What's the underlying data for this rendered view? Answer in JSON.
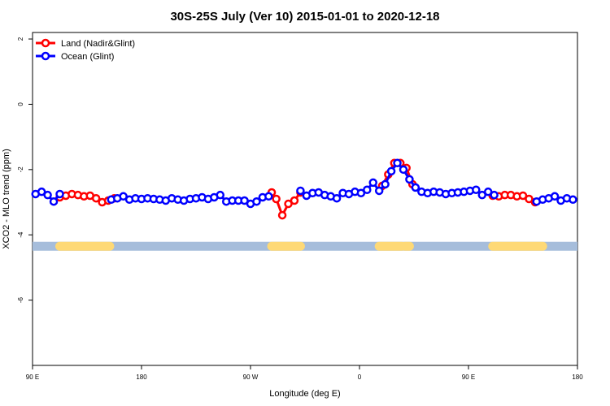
{
  "chart_data": {
    "type": "line",
    "title": "30S-25S July (Ver 10)   2015-01-01 to 2020-12-18",
    "xlabel": "Longitude (deg E)",
    "ylabel": "XCO2 - MLO trend (ppm)",
    "xlim": [
      0,
      360
    ],
    "ylim": [
      -8,
      2.2
    ],
    "x_ticks": [
      {
        "value": 0,
        "label": "90 E"
      },
      {
        "value": 72,
        "label": "180"
      },
      {
        "value": 144,
        "label": "90 W"
      },
      {
        "value": 216,
        "label": "0"
      },
      {
        "value": 288,
        "label": "90 E"
      },
      {
        "value": 360,
        "label": "180"
      }
    ],
    "y_ticks": [
      {
        "value": 2,
        "label": "2"
      },
      {
        "value": 0,
        "label": "0"
      },
      {
        "value": -2,
        "label": "-2"
      },
      {
        "value": -4,
        "label": "-4"
      },
      {
        "value": -6,
        "label": "-6"
      }
    ],
    "grid": false,
    "legend_position": "top-left",
    "series": [
      {
        "name": "Land (Nadir&Glint)",
        "color": "#ff0000",
        "x": [
          18.0,
          22.0,
          26.0,
          30.0,
          34.0,
          38.0,
          42.0,
          46.0,
          50.0,
          54.0,
          158.0,
          161.0,
          165.0,
          169.0,
          173.0,
          177.0,
          231.0,
          235.0,
          239.0,
          243.0,
          247.0,
          251.0,
          304.0,
          308.0,
          312.0,
          316.0,
          320.0,
          324.0,
          328.0,
          332.0
        ],
        "y": [
          -2.85,
          -2.8,
          -2.75,
          -2.78,
          -2.82,
          -2.8,
          -2.88,
          -3.0,
          -2.95,
          -2.88,
          -2.7,
          -2.9,
          -3.4,
          -3.05,
          -2.95,
          -2.7,
          -2.5,
          -2.15,
          -1.8,
          -1.8,
          -1.95,
          -2.45,
          -2.8,
          -2.82,
          -2.78,
          -2.78,
          -2.82,
          -2.8,
          -2.9,
          -3.0
        ]
      },
      {
        "name": "Ocean (Glint)",
        "color": "#0000ff",
        "x": [
          2.0,
          6.0,
          10.0,
          14.0,
          18.0,
          52.0,
          56.0,
          60.0,
          64.0,
          68.0,
          72.0,
          76.0,
          80.0,
          84.0,
          88.0,
          92.0,
          96.0,
          100.0,
          104.0,
          108.0,
          112.0,
          116.0,
          120.0,
          124.0,
          128.0,
          132.0,
          136.0,
          140.0,
          144.0,
          148.0,
          152.0,
          156.0,
          177.0,
          181.0,
          185.0,
          189.0,
          193.0,
          197.0,
          201.0,
          205.0,
          209.0,
          213.0,
          217.0,
          221.0,
          225.0,
          229.0,
          233.0,
          237.0,
          241.0,
          245.0,
          249.0,
          253.0,
          257.0,
          261.0,
          265.0,
          269.0,
          273.0,
          277.0,
          281.0,
          285.0,
          289.0,
          293.0,
          297.0,
          301.0,
          305.0,
          333.0,
          337.0,
          341.0,
          345.0,
          349.0,
          353.0,
          357.0
        ],
        "y": [
          -2.75,
          -2.68,
          -2.78,
          -2.98,
          -2.75,
          -2.92,
          -2.88,
          -2.82,
          -2.92,
          -2.88,
          -2.9,
          -2.88,
          -2.9,
          -2.92,
          -2.95,
          -2.88,
          -2.92,
          -2.95,
          -2.9,
          -2.88,
          -2.85,
          -2.9,
          -2.85,
          -2.78,
          -2.98,
          -2.95,
          -2.95,
          -2.95,
          -3.05,
          -2.98,
          -2.85,
          -2.82,
          -2.65,
          -2.8,
          -2.72,
          -2.7,
          -2.78,
          -2.82,
          -2.88,
          -2.72,
          -2.75,
          -2.68,
          -2.72,
          -2.62,
          -2.4,
          -2.65,
          -2.45,
          -2.05,
          -1.8,
          -2.0,
          -2.3,
          -2.55,
          -2.68,
          -2.72,
          -2.68,
          -2.7,
          -2.75,
          -2.72,
          -2.7,
          -2.68,
          -2.65,
          -2.62,
          -2.78,
          -2.68,
          -2.78,
          -2.98,
          -2.92,
          -2.88,
          -2.82,
          -2.95,
          -2.88,
          -2.92
        ]
      }
    ],
    "surface_band": {
      "y": -4.35,
      "ocean_color": "#a6bddb",
      "land_color": "#fed976",
      "land_segments": [
        [
          18,
          51
        ],
        [
          158,
          177
        ],
        [
          229,
          244
        ],
        [
          246,
          249
        ],
        [
          304,
          337
        ]
      ]
    }
  }
}
